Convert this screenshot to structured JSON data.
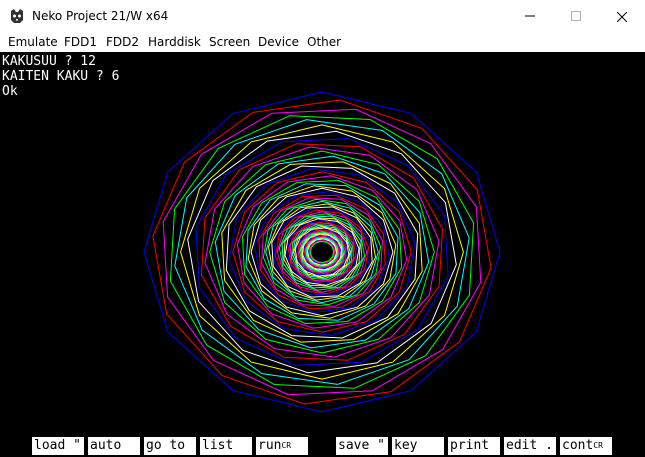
{
  "window": {
    "title": "Neko Project 21/W x64",
    "icons": {
      "app": "cat-face-icon",
      "minimize": "minimize-icon",
      "maximize": "maximize-icon",
      "close": "close-icon"
    }
  },
  "menu": {
    "items": [
      "Emulate",
      "FDD1",
      "FDD2",
      "Harddisk",
      "Screen",
      "Device",
      "Other"
    ]
  },
  "terminal": {
    "lines": [
      "KAKUSUU ? 12",
      "KAITEN KAKU ? 6",
      "Ok"
    ]
  },
  "graphic": {
    "polygon_sides": 12,
    "rotation_degrees": 6,
    "colors": [
      "#0000ff",
      "#ff0000",
      "#ff00ff",
      "#00ff00",
      "#00ffff",
      "#ffff00",
      "#ffffff"
    ]
  },
  "function_keys": [
    "load \"",
    "auto",
    "go to",
    "list",
    "run",
    "save \"",
    "key",
    "print",
    "edit .",
    "cont"
  ],
  "function_key_suffixes": {
    "run": "CR",
    "cont": "CR"
  }
}
